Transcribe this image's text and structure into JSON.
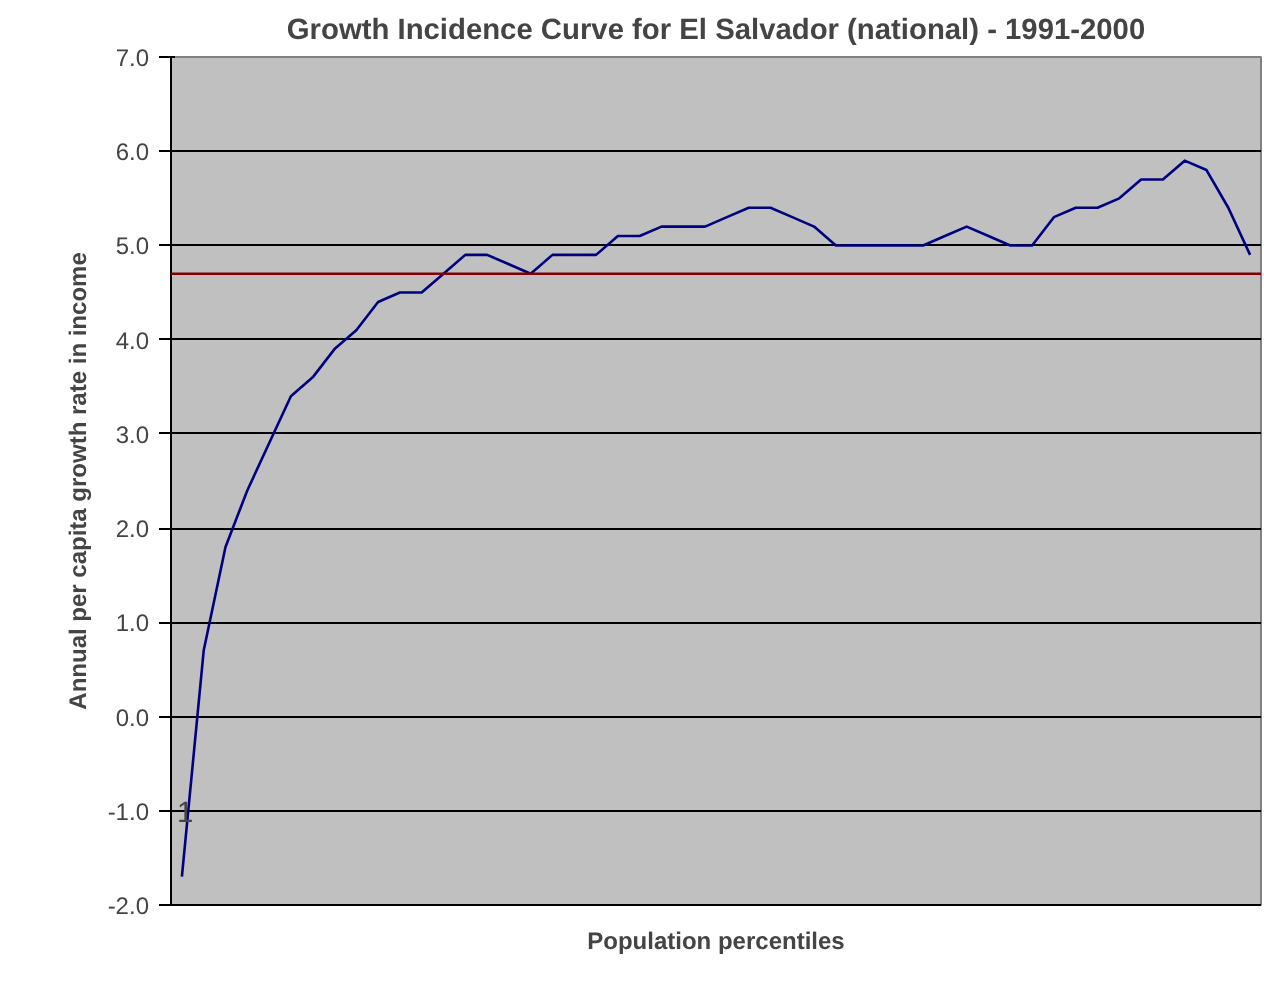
{
  "chart_data": {
    "type": "line",
    "title": "Growth Incidence Curve for El Salvador (national) - 1991-2000",
    "xlabel": "Population percentiles",
    "ylabel": "Annual per capita growth rate in income",
    "categories": [
      null,
      null,
      null,
      null,
      null,
      null,
      null,
      null,
      null,
      null,
      null,
      null,
      null,
      null,
      null,
      null,
      null,
      null,
      null,
      null,
      null,
      null,
      null,
      null,
      null,
      null,
      null,
      null,
      null,
      null,
      null,
      null,
      null,
      null,
      null,
      null,
      null,
      null,
      null,
      null,
      null,
      null,
      null,
      null,
      null,
      null,
      null,
      null,
      null,
      null
    ],
    "series": [
      {
        "color": "#000080",
        "values": [
          -1.7,
          0.7,
          1.8,
          2.4,
          2.9,
          3.4,
          3.6,
          3.9,
          4.1,
          4.4,
          4.5,
          4.5,
          4.7,
          4.9,
          4.9,
          4.8,
          4.7,
          4.9,
          4.9,
          4.9,
          5.1,
          5.1,
          5.2,
          5.2,
          5.2,
          5.3,
          5.4,
          5.4,
          5.3,
          5.2,
          5.0,
          5.0,
          5.0,
          5.0,
          5.0,
          5.1,
          5.2,
          5.1,
          5.0,
          5.0,
          5.3,
          5.4,
          5.4,
          5.5,
          5.7,
          5.7,
          5.9,
          5.8,
          5.4,
          4.9
        ]
      }
    ],
    "ylim": [
      -2,
      7
    ],
    "yticks": [
      {
        "value": -2,
        "label": "-2.0"
      },
      {
        "value": -1,
        "label": "-1.0"
      },
      {
        "value": 0,
        "label": "0.0"
      },
      {
        "value": 1,
        "label": "1.0"
      },
      {
        "value": 2,
        "label": "2.0"
      },
      {
        "value": 3,
        "label": "3.0"
      },
      {
        "value": 4,
        "label": "4.0"
      },
      {
        "value": 5,
        "label": "5.0"
      },
      {
        "value": 6,
        "label": "6.0"
      },
      {
        "value": 7,
        "label": "7.0"
      }
    ],
    "grid": "y",
    "marker": "none",
    "line_style": "solid",
    "ref_lines": [
      {
        "axis": "y",
        "value": 4.7,
        "label": null,
        "color": "#800000"
      }
    ],
    "annotations": [
      "1"
    ]
  }
}
